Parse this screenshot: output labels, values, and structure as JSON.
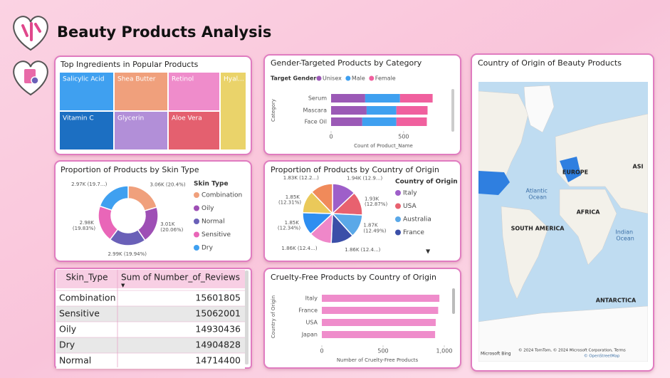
{
  "header": {
    "title": "Beauty Products Analysis"
  },
  "treemap": {
    "title": "Top Ingredients in Popular Products",
    "tiles": [
      {
        "label": "Salicylic Acid",
        "color": "#3fa0f0"
      },
      {
        "label": "Shea Butter",
        "color": "#f0a07c"
      },
      {
        "label": "Retinol",
        "color": "#ef8ccb"
      },
      {
        "label": "Hyal...",
        "color": "#ead36a"
      },
      {
        "label": "Vitamin C",
        "color": "#1c6fc2"
      },
      {
        "label": "Glycerin",
        "color": "#b28fd8"
      },
      {
        "label": "Aloe Vera",
        "color": "#e4606f"
      }
    ]
  },
  "chart_data": [
    {
      "type": "bar",
      "orientation": "horizontal",
      "stacked": true,
      "title": "Gender-Targeted Products by Category",
      "legend_title": "Target Gender",
      "categories": [
        "Serum",
        "Mascara",
        "Face Oil"
      ],
      "series": [
        {
          "name": "Unisex",
          "color": "#9b59b6",
          "values": [
            235,
            245,
            215
          ]
        },
        {
          "name": "Male",
          "color": "#3fa0f0",
          "values": [
            240,
            205,
            235
          ]
        },
        {
          "name": "Female",
          "color": "#f0609e",
          "values": [
            225,
            215,
            210
          ]
        }
      ],
      "xlim": [
        0,
        800
      ],
      "xticks": [
        0,
        500
      ],
      "xlabel": "Count of Product_Name",
      "ylabel": "Category"
    },
    {
      "type": "donut",
      "title": "Proportion of Products by Skin Type",
      "legend_title": "Skin Type",
      "categories": [
        "Combination",
        "Oily",
        "Normal",
        "Sensitive",
        "Dry"
      ],
      "values": [
        3060,
        3010,
        2990,
        2980,
        2970
      ],
      "value_labels": [
        "3.06K (20.4%)",
        "3.01K (20.06%)",
        "2.99K (19.94%)",
        "2.98K (19.83%)",
        "2.97K (19.7...)"
      ],
      "colors": [
        "#f0a07c",
        "#9e4fb5",
        "#6a60b8",
        "#e966b8",
        "#3fa0f0"
      ]
    },
    {
      "type": "pie",
      "title": "Proportion of Products by Country of Origin",
      "legend_title": "Country of Origin",
      "categories": [
        "Italy",
        "USA",
        "Australia",
        "France",
        null,
        null,
        null,
        null
      ],
      "values": [
        1940,
        1930,
        1870,
        1860,
        1860,
        1850,
        1850,
        1830
      ],
      "value_labels": [
        "1.94K (12.9...)",
        "1.93K (12.87%)",
        "1.87K (12.49%)",
        "1.86K (12.4...)",
        "1.86K (12.4...)",
        "1.85K (12.34%)",
        "1.85K (12.31%)",
        "1.83K (12.2...)"
      ],
      "colors": [
        "#9e5fc9",
        "#e8616f",
        "#5aa8e8",
        "#3b4fa8",
        "#ef87c9",
        "#2e8ef0",
        "#eac95a",
        "#f08a5a"
      ]
    },
    {
      "type": "bar",
      "orientation": "horizontal",
      "title": "Cruelty-Free Products by Country of Origin",
      "categories": [
        "Italy",
        "France",
        "USA",
        "Japan"
      ],
      "values": [
        960,
        950,
        930,
        925
      ],
      "color": "#ef8ccb",
      "xlim": [
        0,
        1000
      ],
      "xticks": [
        0,
        500,
        {
          "value": 1000,
          "label": "1,000"
        }
      ],
      "xlabel": "Number of Cruelty-Free Products",
      "ylabel": "Country of Origin"
    }
  ],
  "table": {
    "columns": [
      "Skin_Type",
      "Sum of Number_of_Reviews"
    ],
    "rows": [
      [
        "Combination",
        "15601805"
      ],
      [
        "Sensitive",
        "15062001"
      ],
      [
        "Oily",
        "14930436"
      ],
      [
        "Dry",
        "14904828"
      ],
      [
        "Normal",
        "14714400"
      ]
    ]
  },
  "map": {
    "title": "Country of Origin of Beauty Products",
    "labels": [
      "EUROPE",
      "ASI",
      "Atlantic Ocean",
      "AFRICA",
      "SOUTH AMERICA",
      "Indian Ocean",
      "ANTARCTICA"
    ],
    "brand": "Microsoft Bing",
    "attribution": "© 2024 TomTom, © 2024 Microsoft Corporation, Terms",
    "osm": "© OpenStreetMap"
  }
}
